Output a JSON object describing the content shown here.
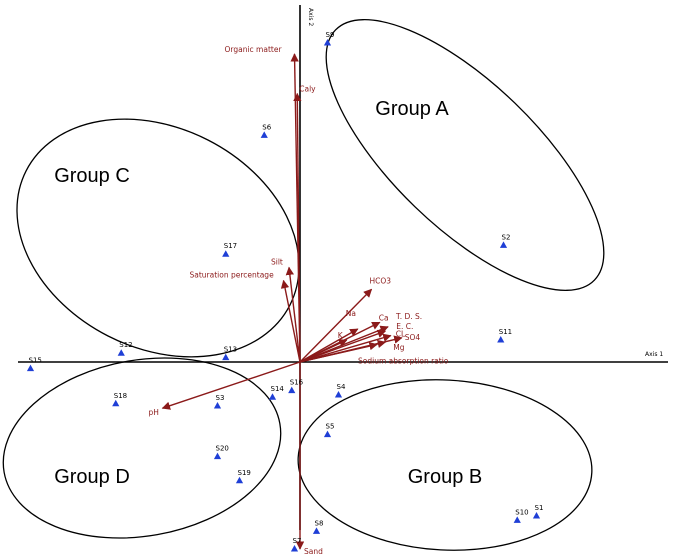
{
  "chart_data": {
    "type": "scatter",
    "title": "",
    "xlabel": "Axis 1",
    "ylabel": "Axis 2",
    "xlim": [
      -1.0,
      1.0
    ],
    "ylim": [
      -1.0,
      1.0
    ],
    "grid": false,
    "colors": {
      "site": "#1f3fd6",
      "vector": "#8b1a1a",
      "axis": "#000000"
    },
    "sites": [
      {
        "label": "S1",
        "x": 0.86,
        "y": -0.7
      },
      {
        "label": "S2",
        "x": 0.74,
        "y": 0.53
      },
      {
        "label": "S3",
        "x": -0.3,
        "y": -0.2
      },
      {
        "label": "S5",
        "x": 0.1,
        "y": -0.33
      },
      {
        "label": "S6",
        "x": -0.13,
        "y": 1.03
      },
      {
        "label": "S7",
        "x": -0.02,
        "y": -0.85
      },
      {
        "label": "S8",
        "x": 0.06,
        "y": -0.77
      },
      {
        "label": "S9",
        "x": 0.1,
        "y": 1.45
      },
      {
        "label": "S10",
        "x": 0.79,
        "y": -0.72
      },
      {
        "label": "S11",
        "x": 0.73,
        "y": 0.1
      },
      {
        "label": "S12",
        "x": -0.65,
        "y": 0.04
      },
      {
        "label": "S13",
        "x": -0.27,
        "y": 0.02
      },
      {
        "label": "S14",
        "x": -0.1,
        "y": -0.16
      },
      {
        "label": "S15",
        "x": -0.98,
        "y": -0.03
      },
      {
        "label": "S16",
        "x": -0.03,
        "y": -0.13
      },
      {
        "label": "S17",
        "x": -0.27,
        "y": 0.49
      },
      {
        "label": "S18",
        "x": -0.67,
        "y": -0.19
      },
      {
        "label": "S19",
        "x": -0.22,
        "y": -0.54
      },
      {
        "label": "S20",
        "x": -0.3,
        "y": -0.43
      },
      {
        "label": "S4",
        "x": 0.14,
        "y": -0.15
      }
    ],
    "vectors": [
      {
        "label": "Organic matter",
        "x": -0.02,
        "y": 1.4
      },
      {
        "label": "Caly",
        "x": -0.01,
        "y": 1.22
      },
      {
        "label": "Silt",
        "x": -0.04,
        "y": 0.43
      },
      {
        "label": "Saturation percentage",
        "x": -0.06,
        "y": 0.37
      },
      {
        "label": "HCO3",
        "x": 0.26,
        "y": 0.33
      },
      {
        "label": "Ca",
        "x": 0.29,
        "y": 0.18
      },
      {
        "label": "T. D. S.",
        "x": 0.32,
        "y": 0.16
      },
      {
        "label": "E. C.",
        "x": 0.31,
        "y": 0.14
      },
      {
        "label": "Na",
        "x": 0.21,
        "y": 0.15
      },
      {
        "label": "K",
        "x": 0.17,
        "y": 0.1
      },
      {
        "label": "CL",
        "x": 0.33,
        "y": 0.12
      },
      {
        "label": "SO4",
        "x": 0.37,
        "y": 0.11
      },
      {
        "label": "Mg",
        "x": 0.31,
        "y": 0.09
      },
      {
        "label": "Sodium absorption ratio",
        "x": 0.28,
        "y": 0.08
      },
      {
        "label": "pH",
        "x": -0.5,
        "y": -0.21
      },
      {
        "label": "Sand",
        "x": 0.0,
        "y": -0.85
      }
    ],
    "groups": [
      {
        "label": "Group A"
      },
      {
        "label": "Group B"
      },
      {
        "label": "Group C"
      },
      {
        "label": "Group D"
      }
    ]
  }
}
